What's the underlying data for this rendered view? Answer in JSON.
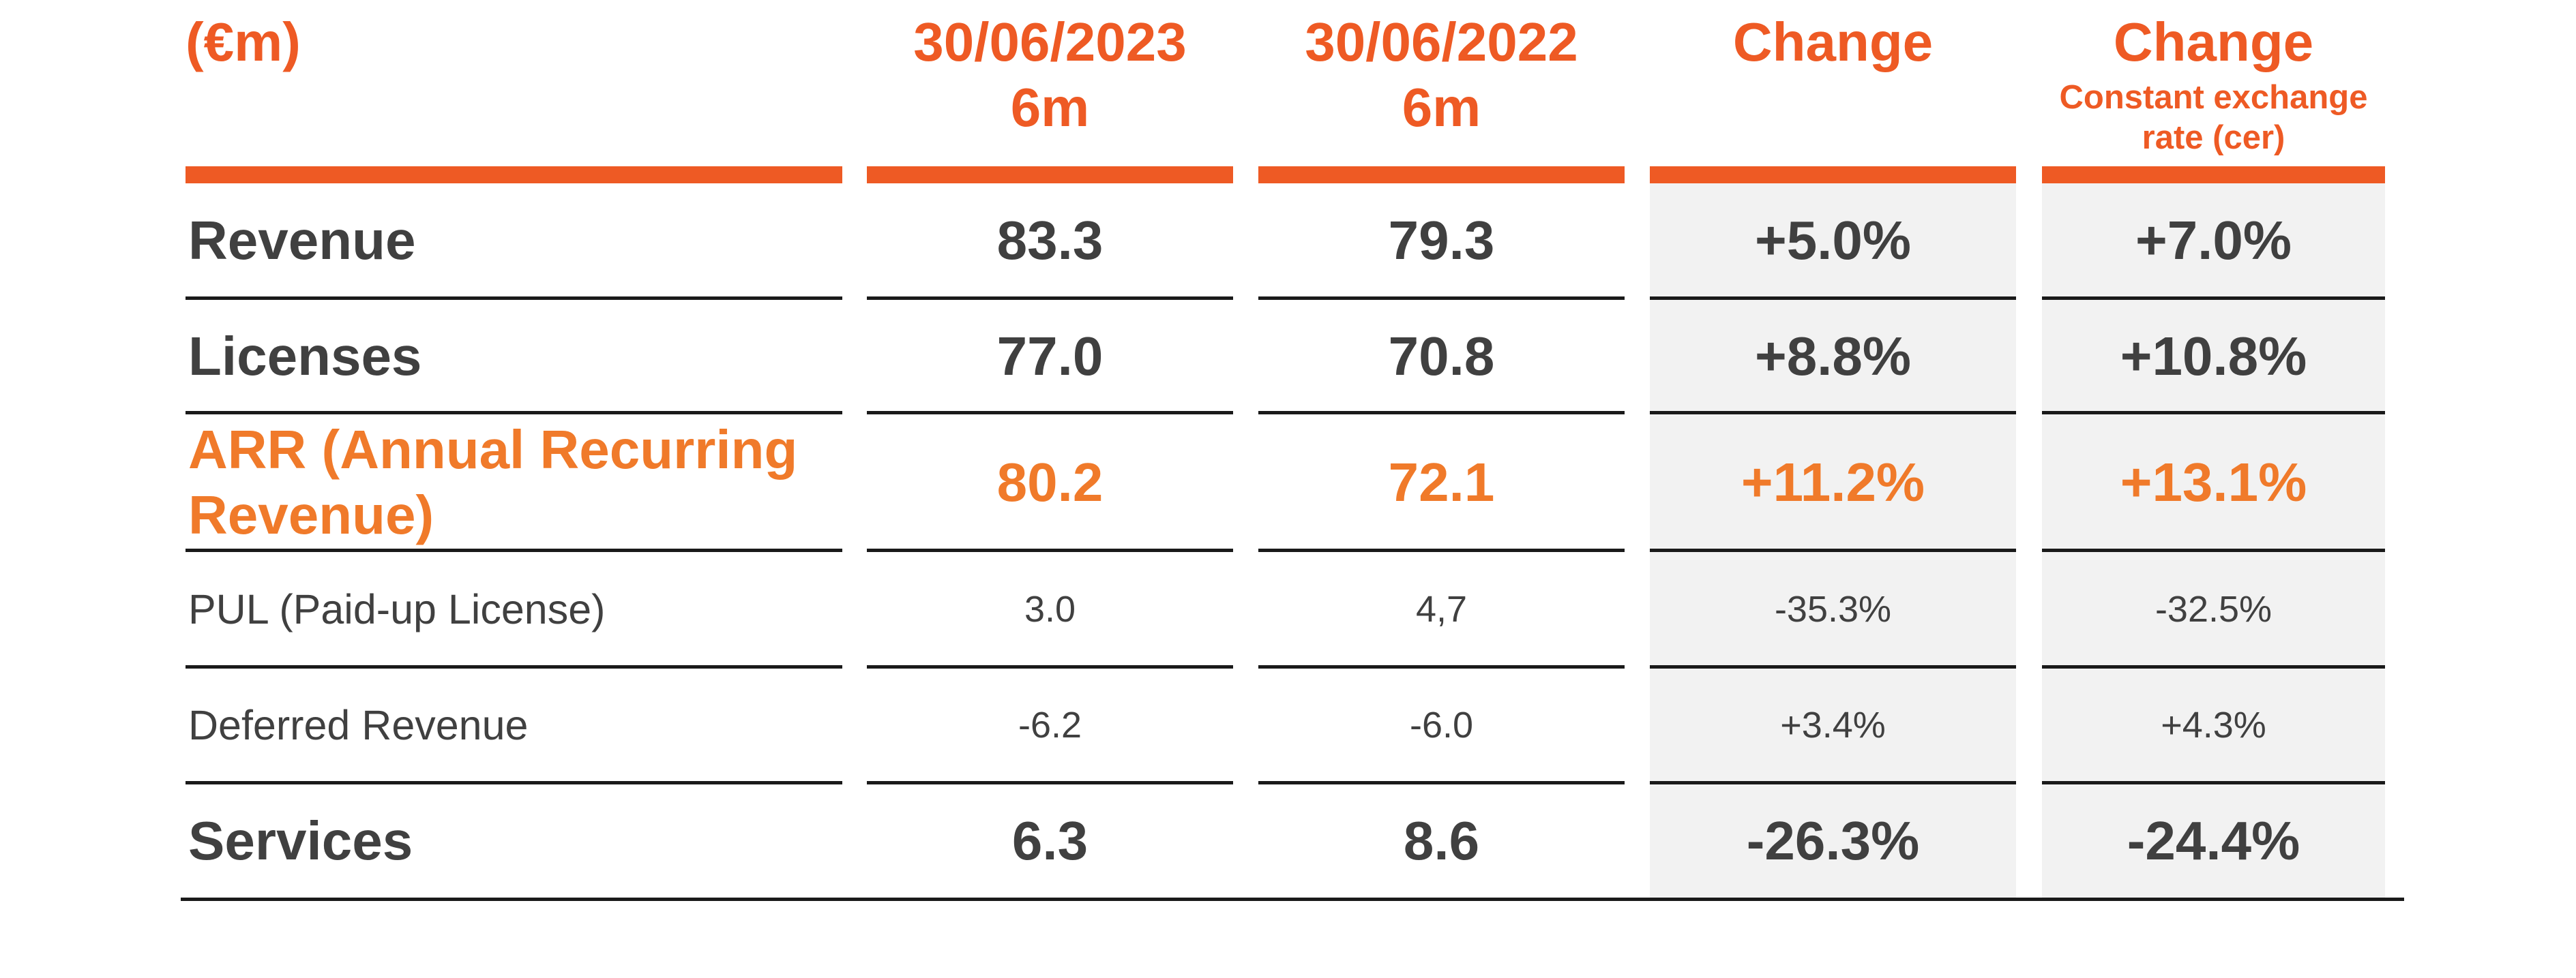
{
  "header": {
    "unit": "(€m)",
    "col1": {
      "line1": "30/06/2023",
      "line2": "6m"
    },
    "col2": {
      "line1": "30/06/2022",
      "line2": "6m"
    },
    "col3": {
      "line1": "Change"
    },
    "col4": {
      "line1": "Change",
      "sub": "Constant exchange rate (cer)"
    }
  },
  "rows": [
    {
      "label": "Revenue",
      "v2023": "83.3",
      "v2022": "79.3",
      "change": "+5.0%",
      "change_cer": "+7.0%",
      "style": "bold"
    },
    {
      "label": "Licenses",
      "v2023": "77.0",
      "v2022": "70.8",
      "change": "+8.8%",
      "change_cer": "+10.8%",
      "style": "bold"
    },
    {
      "label": "ARR (Annual Recurring Revenue)",
      "v2023": "80.2",
      "v2022": "72.1",
      "change": "+11.2%",
      "change_cer": "+13.1%",
      "style": "highlight"
    },
    {
      "label": "PUL (Paid-up License)",
      "v2023": "3.0",
      "v2022": "4,7",
      "change": "-35.3%",
      "change_cer": "-32.5%",
      "style": "regular"
    },
    {
      "label": "Deferred Revenue",
      "v2023": "-6.2",
      "v2022": "-6.0",
      "change": "+3.4%",
      "change_cer": "+4.3%",
      "style": "regular"
    },
    {
      "label": "Services",
      "v2023": "6.3",
      "v2022": "8.6",
      "change": "-26.3%",
      "change_cer": "-24.4%",
      "style": "bold"
    }
  ],
  "colors": {
    "accent": "#ee5a24",
    "highlight_text": "#f07a2a",
    "body_text": "#404040",
    "shade": "#f2f2f2",
    "rule": "#1a1a1a"
  }
}
